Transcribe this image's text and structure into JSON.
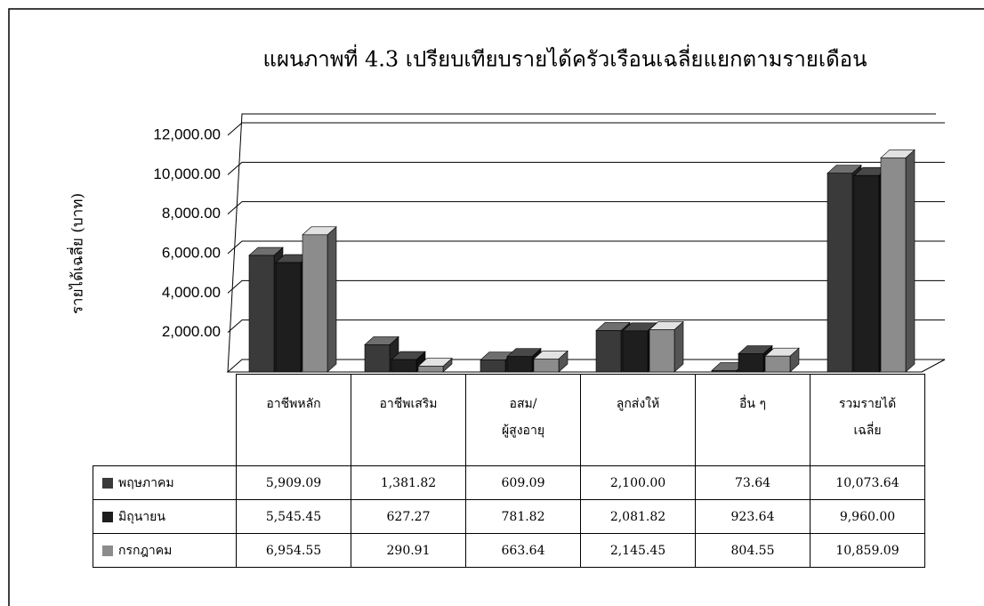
{
  "chart_data": {
    "type": "bar3d",
    "title": "แผนภาพที่ 4.3  เปรียบเทียบรายได้ครัวเรือนเฉลี่ยแยกตามรายเดือน",
    "y_label": "รายได้เฉลี่ย (บาท)",
    "categories": [
      "อาชีพหลัก",
      "อาชีพเสริม",
      "อสม/\nผู้สูงอายุ",
      "ลูกส่งให้",
      "อื่น ๆ",
      "รวมรายได้\nเฉลี่ย"
    ],
    "series": [
      {
        "name": "พฤษภาคม",
        "color": "#3a3a3a",
        "values": [
          5909.09,
          1381.82,
          609.09,
          2100.0,
          73.64,
          10073.64
        ],
        "value_labels": [
          "5,909.09",
          "1,381.82",
          "609.09",
          "2,100.00",
          "73.64",
          "10,073.64"
        ]
      },
      {
        "name": "มิถุนายน",
        "color": "#1e1e1e",
        "values": [
          5545.45,
          627.27,
          781.82,
          2081.82,
          923.64,
          9960.0
        ],
        "value_labels": [
          "5,545.45",
          "627.27",
          "781.82",
          "2,081.82",
          "923.64",
          "9,960.00"
        ]
      },
      {
        "name": "กรกฎาคม",
        "color": "#8c8c8c",
        "values": [
          6954.55,
          290.91,
          663.64,
          2145.45,
          804.55,
          10859.09
        ],
        "value_labels": [
          "6,954.55",
          "290.91",
          "663.64",
          "2,145.45",
          "804.55",
          "10,859.09"
        ]
      }
    ],
    "ylim": [
      0,
      12000
    ],
    "yticks": [
      {
        "value": 2000,
        "label": "2,000.00"
      },
      {
        "value": 4000,
        "label": "4,000.00"
      },
      {
        "value": 6000,
        "label": "6,000.00"
      },
      {
        "value": 8000,
        "label": "8,000.00"
      },
      {
        "value": 10000,
        "label": "10,000.00"
      },
      {
        "value": 12000,
        "label": "12,000.00"
      }
    ],
    "grid": true
  }
}
